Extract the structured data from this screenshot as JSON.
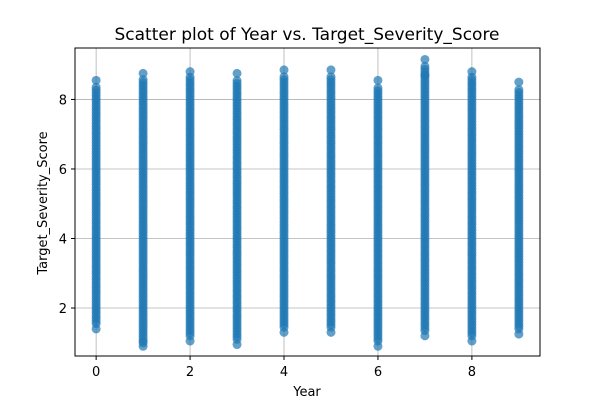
{
  "chart_data": {
    "type": "scatter",
    "title": "Scatter plot of Year vs. Target_Severity_Score",
    "xlabel": "Year",
    "ylabel": "Target_Severity_Score",
    "xlim": [
      -0.45,
      9.45
    ],
    "ylim": [
      0.62,
      9.48
    ],
    "xticks": [
      0,
      2,
      4,
      6,
      8
    ],
    "yticks": [
      2,
      4,
      6,
      8
    ],
    "grid": true,
    "marker_color": "#1f77b4",
    "series": [
      {
        "points": [
          {
            "x": 0,
            "range": [
              1.4,
              8.55
            ],
            "outliers": [
              1.4,
              8.55
            ]
          },
          {
            "x": 1,
            "range": [
              0.9,
              8.75
            ],
            "outliers": [
              0.9,
              1.0,
              8.75
            ]
          },
          {
            "x": 2,
            "range": [
              1.05,
              8.8
            ],
            "outliers": [
              1.05,
              8.8
            ]
          },
          {
            "x": 3,
            "range": [
              0.95,
              8.75
            ],
            "outliers": [
              0.95,
              8.75
            ]
          },
          {
            "x": 4,
            "range": [
              1.3,
              8.85
            ],
            "outliers": [
              1.3,
              8.85
            ]
          },
          {
            "x": 5,
            "range": [
              1.3,
              8.85
            ],
            "outliers": [
              1.3,
              8.85
            ]
          },
          {
            "x": 6,
            "range": [
              0.9,
              8.55
            ],
            "outliers": [
              0.9,
              8.55
            ]
          },
          {
            "x": 7,
            "range": [
              1.2,
              9.15
            ],
            "outliers": [
              1.2,
              8.7,
              9.15
            ]
          },
          {
            "x": 8,
            "range": [
              1.05,
              8.8
            ],
            "outliers": [
              1.05,
              8.8
            ]
          },
          {
            "x": 9,
            "range": [
              1.25,
              8.5
            ],
            "outliers": [
              1.25,
              8.5
            ]
          }
        ]
      }
    ]
  }
}
